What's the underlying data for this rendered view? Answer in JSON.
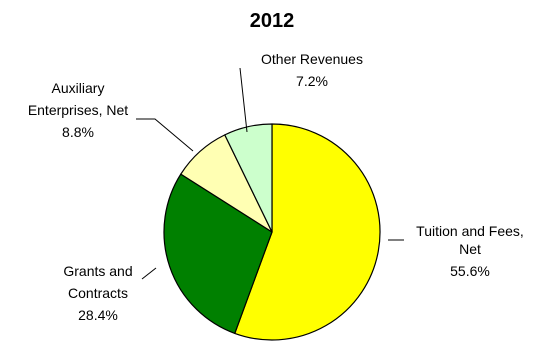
{
  "chart_data": {
    "type": "pie",
    "title": "2012",
    "start_angle_deg": 0,
    "direction": "clockwise",
    "slices": [
      {
        "label_lines": [
          "Tuition and Fees,",
          "Net"
        ],
        "pct_label": "55.6%",
        "value": 55.6,
        "color": "#ffff00"
      },
      {
        "label_lines": [
          "Grants and",
          "Contracts"
        ],
        "pct_label": "28.4%",
        "value": 28.4,
        "color": "#008000"
      },
      {
        "label_lines": [
          "Auxiliary",
          "Enterprises, Net"
        ],
        "pct_label": "8.8%",
        "value": 8.8,
        "color": "#ffffb3"
      },
      {
        "label_lines": [
          "Other Revenues"
        ],
        "pct_label": "7.2%",
        "value": 7.2,
        "color": "#ccffcc"
      }
    ]
  }
}
